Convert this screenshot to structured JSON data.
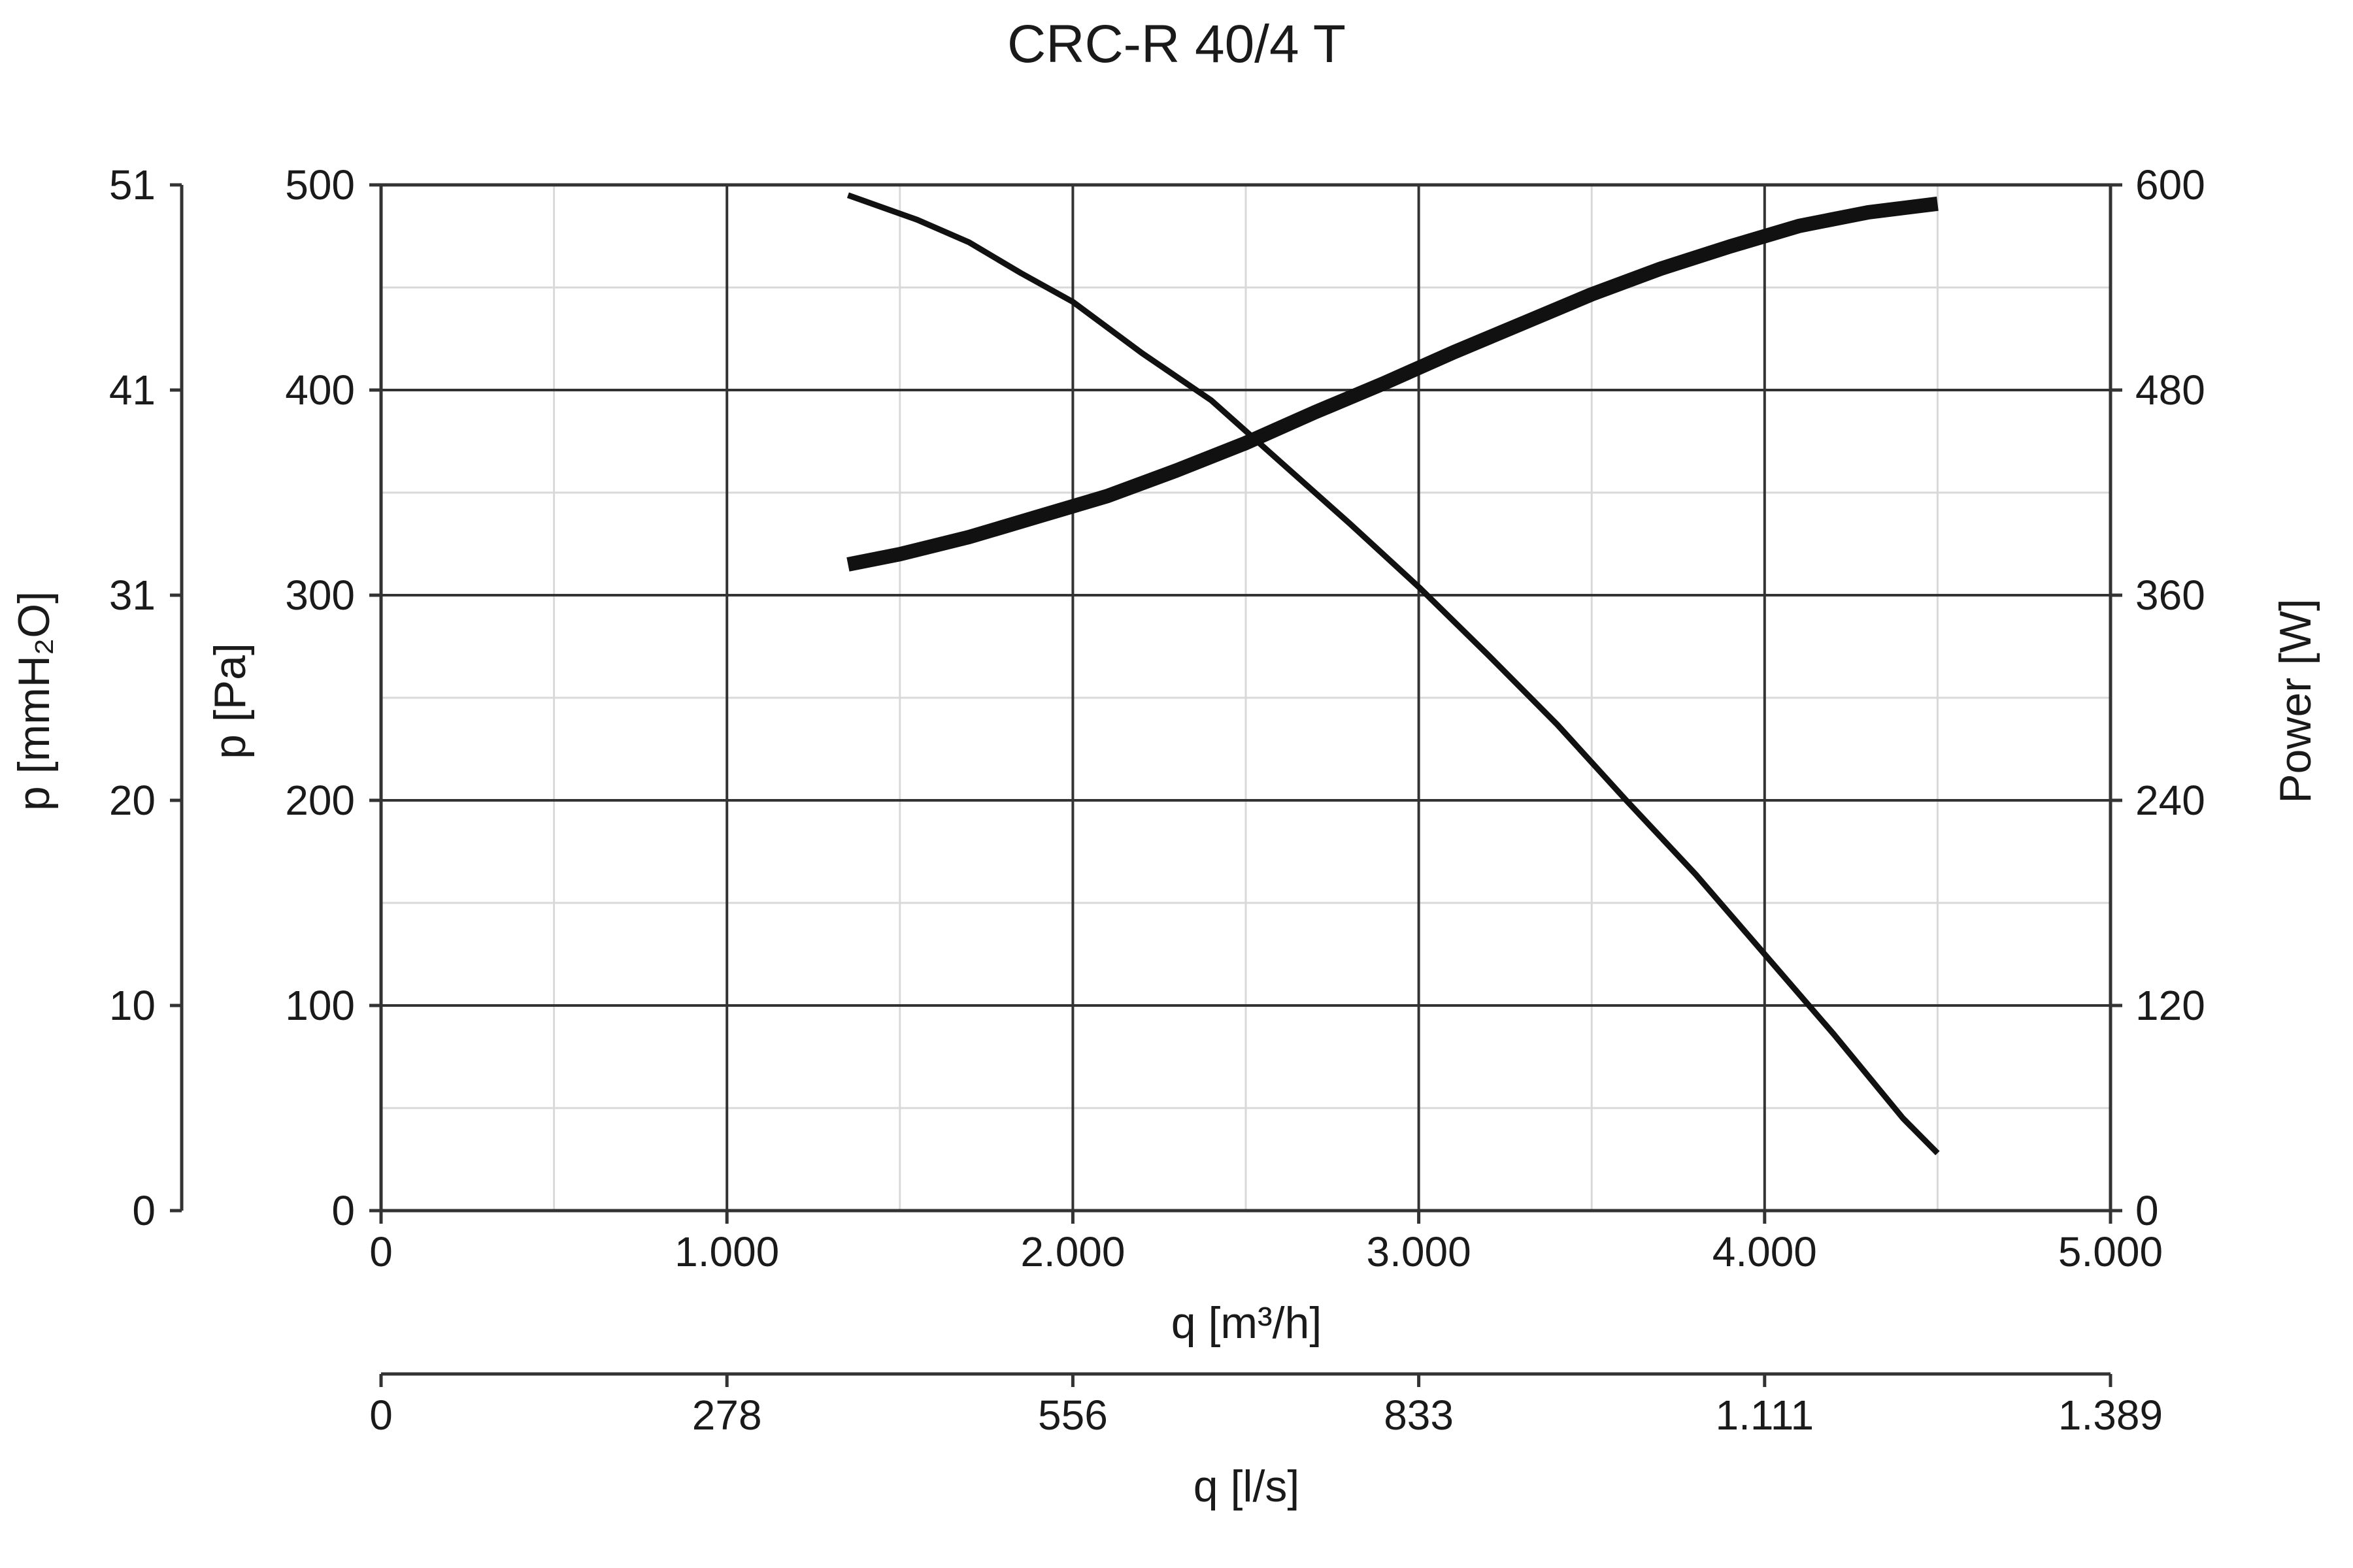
{
  "chart_data": {
    "type": "line",
    "title": "CRC-R 40/4 T",
    "xlabel": "q [m³/h]",
    "xlabel_secondary": "q [l/s]",
    "ylabel": "p [Pa]",
    "ylabel_secondary": "p [mmH₂O]",
    "y2label": "Power [W]",
    "xlim": [
      0,
      5000
    ],
    "ylim": [
      0,
      500
    ],
    "y2lim": [
      0,
      600
    ],
    "grid": true,
    "x_ticks": [
      0,
      1000,
      2000,
      3000,
      4000,
      5000
    ],
    "x_tick_labels": [
      "0",
      "1.000",
      "2.000",
      "3.000",
      "4.000",
      "5.000"
    ],
    "x2_tick_labels": [
      "0",
      "278",
      "556",
      "833",
      "1.111",
      "1.389"
    ],
    "y_ticks": [
      0,
      100,
      200,
      300,
      400,
      500
    ],
    "y_tick_labels": [
      "0",
      "100",
      "200",
      "300",
      "400",
      "500"
    ],
    "y_secondary_tick_labels": [
      "0",
      "10",
      "20",
      "31",
      "41",
      "51"
    ],
    "y2_ticks": [
      0,
      120,
      240,
      360,
      480,
      600
    ],
    "y2_tick_labels": [
      "0",
      "120",
      "240",
      "360",
      "480",
      "600"
    ],
    "series": [
      {
        "axis": "left",
        "x": [
          1350,
          1550,
          1700,
          1850,
          2000,
          2200,
          2400,
          2600,
          2800,
          3000,
          3200,
          3400,
          3600,
          3800,
          4000,
          4200,
          4400,
          4500
        ],
        "values": [
          495,
          483,
          472,
          457,
          443,
          418,
          395,
          365,
          335,
          304,
          271,
          237,
          200,
          164,
          125,
          86,
          45,
          28
        ]
      },
      {
        "axis": "right",
        "x": [
          1350,
          1500,
          1700,
          1900,
          2100,
          2300,
          2500,
          2700,
          2900,
          3100,
          3300,
          3500,
          3700,
          3900,
          4100,
          4300,
          4500
        ],
        "values": [
          378,
          384,
          394,
          406,
          418,
          433,
          449,
          467,
          484,
          502,
          519,
          536,
          551,
          564,
          576,
          584,
          589
        ]
      }
    ]
  }
}
